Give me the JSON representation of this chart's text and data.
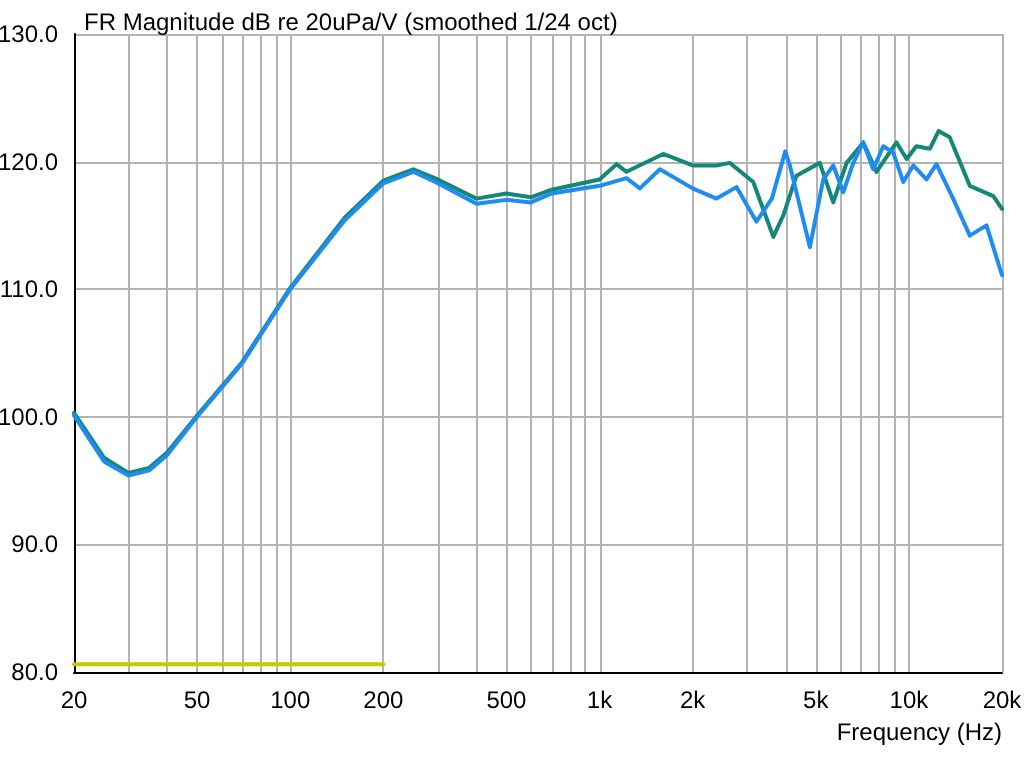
{
  "chart_data": {
    "type": "line",
    "title": "FR Magnitude dB re 20uPa/V (smoothed 1/24 oct)",
    "xlabel": "Frequency (Hz)",
    "log": "x",
    "grid": true,
    "marker": "none",
    "line_style": "solid",
    "xlim": [
      20,
      20000
    ],
    "ylim": [
      80,
      130
    ],
    "xticks": [
      20,
      {
        "value": 30,
        "label": null
      },
      {
        "value": 40,
        "label": null
      },
      50,
      {
        "value": 60,
        "label": null
      },
      {
        "value": 70,
        "label": null
      },
      {
        "value": 80,
        "label": null
      },
      {
        "value": 90,
        "label": null
      },
      100,
      200,
      {
        "value": 300,
        "label": null
      },
      {
        "value": 400,
        "label": null
      },
      500,
      {
        "value": 600,
        "label": null
      },
      {
        "value": 700,
        "label": null
      },
      {
        "value": 800,
        "label": null
      },
      {
        "value": 900,
        "label": null
      },
      {
        "value": 1000,
        "label": "1k"
      },
      {
        "value": 2000,
        "label": "2k"
      },
      {
        "value": 3000,
        "label": null
      },
      {
        "value": 4000,
        "label": null
      },
      {
        "value": 5000,
        "label": "5k"
      },
      {
        "value": 6000,
        "label": null
      },
      {
        "value": 7000,
        "label": null
      },
      {
        "value": 8000,
        "label": null
      },
      {
        "value": 9000,
        "label": null
      },
      {
        "value": 10000,
        "label": "10k"
      },
      {
        "value": 20000,
        "label": "20k"
      }
    ],
    "yticks": [
      {
        "value": 80,
        "label": "80.0"
      },
      {
        "value": 90,
        "label": "90.0"
      },
      {
        "value": 100,
        "label": "100.0"
      },
      {
        "value": 110,
        "label": "110.0"
      },
      {
        "value": 120,
        "label": "120.0"
      },
      {
        "value": 130,
        "label": "130.0"
      }
    ],
    "series": [
      {
        "color": "#148878",
        "x": [
          20,
          25,
          30,
          35,
          40,
          50,
          70,
          100,
          150,
          200,
          250,
          300,
          400,
          500,
          600,
          700,
          1000,
          1135,
          1222,
          1607,
          2000,
          2388,
          2637,
          3140,
          3646,
          3929,
          4331,
          5152,
          5696,
          6290,
          7122,
          7856,
          9120,
          9833,
          10570,
          11690,
          12480,
          13550,
          15740,
          18750,
          20000
        ],
        "values": [
          100.3,
          96.8,
          95.6,
          96.0,
          97.2,
          100.1,
          104.3,
          110.1,
          115.6,
          118.5,
          119.4,
          118.6,
          117.1,
          117.5,
          117.2,
          117.8,
          118.6,
          119.8,
          119.2,
          120.6,
          119.7,
          119.7,
          119.9,
          118.4,
          114.1,
          115.8,
          118.9,
          119.9,
          116.8,
          119.9,
          121.5,
          119.2,
          121.5,
          120.2,
          121.2,
          121.0,
          122.4,
          121.9,
          118.1,
          117.3,
          116.3
        ]
      },
      {
        "color": "#1e8cf0",
        "x": [
          20,
          25,
          30,
          35,
          40,
          50,
          70,
          100,
          150,
          200,
          250,
          300,
          400,
          500,
          600,
          700,
          1000,
          1222,
          1350,
          1567,
          2000,
          2388,
          2771,
          3214,
          3607,
          3983,
          4123,
          4786,
          5287,
          5696,
          6137,
          6612,
          7122,
          7670,
          8263,
          8900,
          9590,
          10330,
          11400,
          12280,
          13900,
          15740,
          17820,
          20000
        ],
        "values": [
          100.1,
          96.5,
          95.4,
          95.8,
          97.0,
          100.0,
          104.2,
          110.0,
          115.4,
          118.3,
          119.2,
          118.3,
          116.7,
          117.0,
          116.8,
          117.5,
          118.1,
          118.7,
          117.9,
          119.4,
          117.9,
          117.1,
          118.0,
          115.3,
          117.1,
          120.8,
          119.7,
          113.3,
          118.6,
          119.7,
          117.6,
          119.9,
          121.5,
          119.4,
          121.2,
          120.7,
          118.4,
          119.7,
          118.6,
          119.8,
          117.1,
          114.2,
          115.0,
          111.1
        ]
      },
      {
        "color": "#c8c800",
        "x": [
          20,
          200
        ],
        "values": [
          80.6,
          80.6
        ]
      }
    ]
  }
}
